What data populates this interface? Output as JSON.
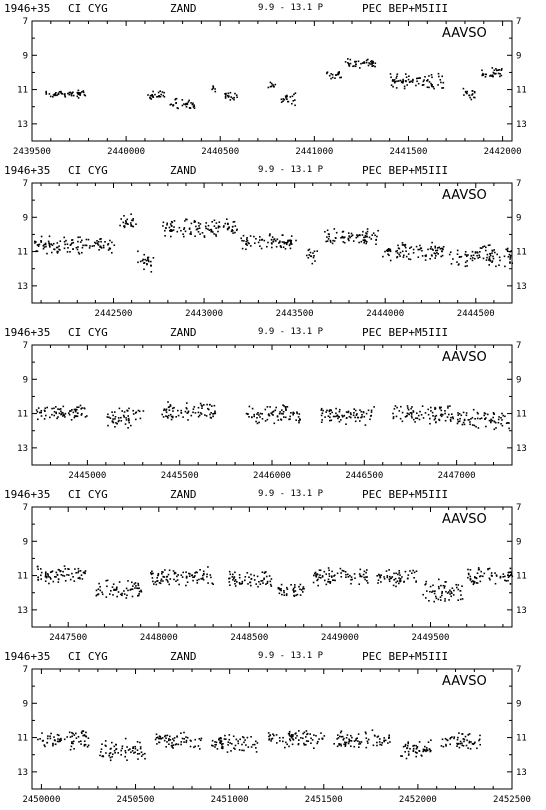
{
  "header": {
    "star_id": "1946+35",
    "star_name": "CI CYG",
    "var_type": "ZAND",
    "range": "9.9 - 13.1 P",
    "spectrum": "PEC BEP+M5III"
  },
  "watermark": "AAVSO",
  "colors": {
    "background": "#ffffff",
    "ink": "#000000"
  },
  "chart_data": [
    {
      "type": "scatter",
      "xlabel": "",
      "ylabel": "",
      "xlim": [
        2439500,
        2442050
      ],
      "ylim": [
        7,
        14
      ],
      "y_inverted": true,
      "y_ticks": [
        7,
        9,
        11,
        13
      ],
      "x_ticks": [
        2439500,
        2440000,
        2440500,
        2441000,
        2441500,
        2442000
      ],
      "x_tick_labels": [
        "2439500",
        "2440000",
        "2440500",
        "2441000",
        "2441500",
        "2442000"
      ],
      "segments": [
        [
          2439570,
          2439780,
          11.2,
          0.15
        ],
        [
          2440100,
          2440200,
          11.3,
          0.15
        ],
        [
          2440230,
          2440360,
          11.8,
          0.2
        ],
        [
          2440450,
          2440470,
          10.9,
          0.15
        ],
        [
          2440520,
          2440590,
          11.4,
          0.15
        ],
        [
          2440750,
          2440790,
          10.7,
          0.15
        ],
        [
          2440820,
          2440900,
          11.5,
          0.2
        ],
        [
          2441060,
          2441140,
          10.1,
          0.15
        ],
        [
          2441160,
          2441320,
          9.4,
          0.15
        ],
        [
          2441400,
          2441700,
          10.5,
          0.25
        ],
        [
          2441780,
          2441850,
          11.2,
          0.2
        ],
        [
          2441880,
          2442000,
          10.0,
          0.2
        ]
      ]
    },
    {
      "type": "scatter",
      "xlabel": "",
      "ylabel": "",
      "xlim": [
        2442050,
        2444700
      ],
      "ylim": [
        7,
        14
      ],
      "y_inverted": true,
      "y_ticks": [
        7,
        9,
        11,
        13
      ],
      "x_ticks": [
        2442500,
        2443000,
        2443500,
        2444000,
        2444500
      ],
      "x_tick_labels": [
        "2442500",
        "2443000",
        "2443500",
        "2444000",
        "2444500"
      ],
      "segments": [
        [
          2442060,
          2442500,
          10.6,
          0.3
        ],
        [
          2442530,
          2442620,
          9.2,
          0.25
        ],
        [
          2442630,
          2442720,
          11.5,
          0.35
        ],
        [
          2442760,
          2443180,
          9.6,
          0.3
        ],
        [
          2443200,
          2443510,
          10.4,
          0.25
        ],
        [
          2443560,
          2443620,
          11.2,
          0.3
        ],
        [
          2443660,
          2443960,
          10.1,
          0.25
        ],
        [
          2443980,
          2444320,
          10.9,
          0.3
        ],
        [
          2444350,
          2444700,
          11.2,
          0.35
        ]
      ]
    },
    {
      "type": "scatter",
      "xlabel": "",
      "ylabel": "",
      "xlim": [
        2444700,
        2447300
      ],
      "ylim": [
        7,
        14
      ],
      "y_inverted": true,
      "y_ticks": [
        7,
        9,
        11,
        13
      ],
      "x_ticks": [
        2445000,
        2445500,
        2446000,
        2446500,
        2447000
      ],
      "x_tick_labels": [
        "2445000",
        "2445500",
        "2446000",
        "2446500",
        "2447000"
      ],
      "segments": [
        [
          2444720,
          2445000,
          10.9,
          0.25
        ],
        [
          2445100,
          2445300,
          11.2,
          0.35
        ],
        [
          2445400,
          2445700,
          10.8,
          0.3
        ],
        [
          2445850,
          2446150,
          11.0,
          0.3
        ],
        [
          2446250,
          2446550,
          11.1,
          0.3
        ],
        [
          2446650,
          2446980,
          11.0,
          0.3
        ],
        [
          2447000,
          2447280,
          11.3,
          0.35
        ]
      ]
    },
    {
      "type": "scatter",
      "xlabel": "",
      "ylabel": "",
      "xlim": [
        2447300,
        2449950
      ],
      "ylim": [
        7,
        14
      ],
      "y_inverted": true,
      "y_ticks": [
        7,
        9,
        11,
        13
      ],
      "x_ticks": [
        2447500,
        2448000,
        2448500,
        2449000,
        2449500
      ],
      "x_tick_labels": [
        "2447500",
        "2448000",
        "2448500",
        "2449000",
        "2449500"
      ],
      "segments": [
        [
          2447320,
          2447600,
          10.9,
          0.3
        ],
        [
          2447650,
          2447900,
          11.8,
          0.35
        ],
        [
          2447950,
          2448300,
          11.0,
          0.3
        ],
        [
          2448380,
          2448620,
          11.2,
          0.3
        ],
        [
          2448650,
          2448800,
          11.8,
          0.25
        ],
        [
          2448850,
          2449150,
          11.0,
          0.3
        ],
        [
          2449200,
          2449420,
          11.1,
          0.3
        ],
        [
          2449450,
          2449680,
          11.8,
          0.35
        ],
        [
          2449700,
          2449950,
          11.0,
          0.3
        ]
      ]
    },
    {
      "type": "scatter",
      "xlabel": "",
      "ylabel": "",
      "xlim": [
        2449950,
        2452500
      ],
      "ylim": [
        7,
        14
      ],
      "y_inverted": true,
      "y_ticks": [
        7,
        9,
        11,
        13
      ],
      "x_ticks": [
        2450000,
        2450500,
        2451000,
        2451500,
        2452000,
        2452500
      ],
      "x_tick_labels": [
        "2450000",
        "2450500",
        "2451000",
        "2451500",
        "2452000",
        "2452500"
      ],
      "segments": [
        [
          2449970,
          2450250,
          11.1,
          0.3
        ],
        [
          2450300,
          2450550,
          11.7,
          0.35
        ],
        [
          2450600,
          2450850,
          11.2,
          0.3
        ],
        [
          2450900,
          2451150,
          11.3,
          0.3
        ],
        [
          2451200,
          2451500,
          11.0,
          0.3
        ],
        [
          2451550,
          2451850,
          11.1,
          0.3
        ],
        [
          2451900,
          2452100,
          11.6,
          0.35
        ],
        [
          2452120,
          2452330,
          11.1,
          0.3
        ]
      ]
    }
  ]
}
